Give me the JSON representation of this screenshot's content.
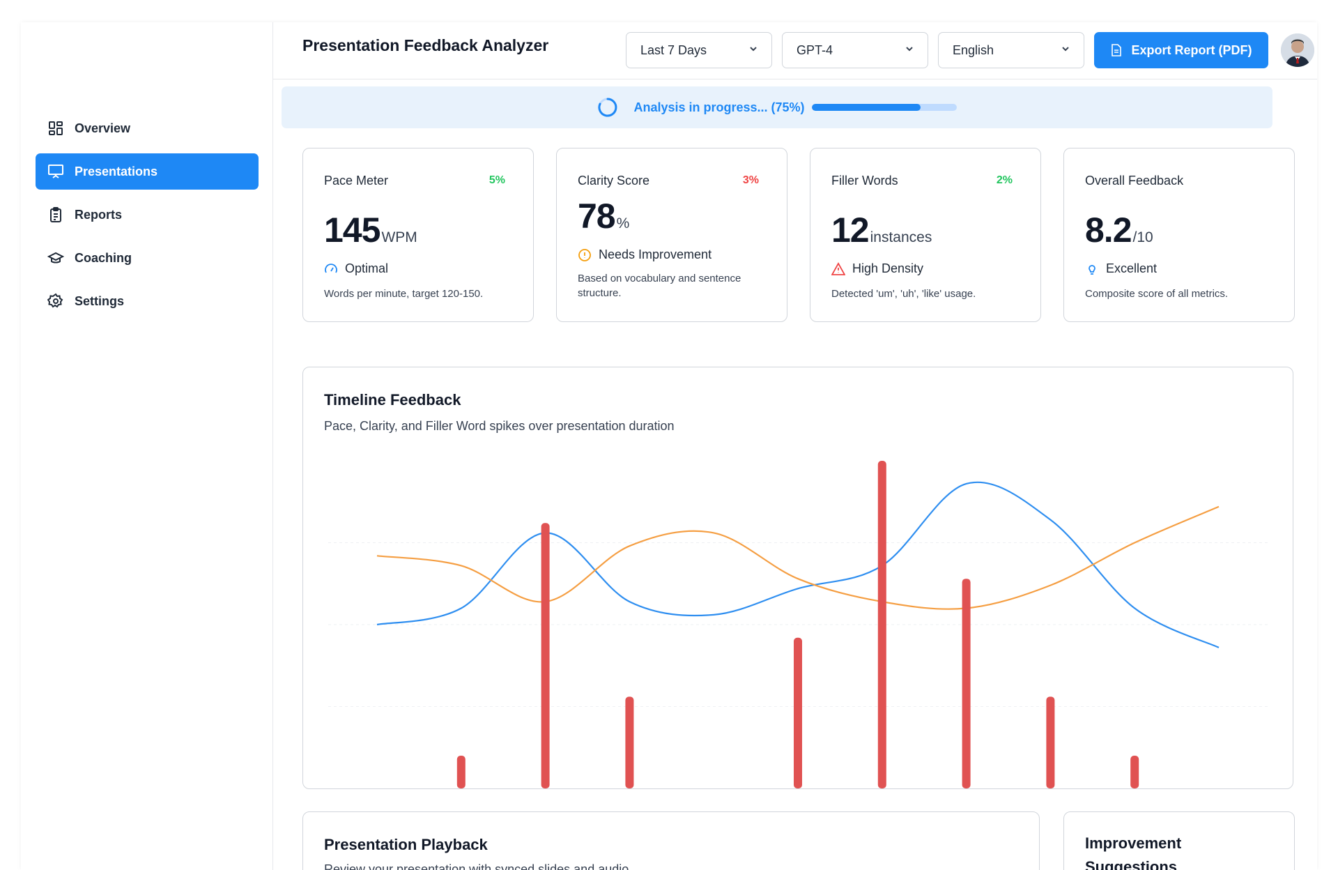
{
  "header": {
    "title": "Presentation Feedback Analyzer",
    "filters": [
      {
        "label": "Last 7 Days"
      },
      {
        "label": "GPT-4"
      },
      {
        "label": "English"
      }
    ],
    "export_label": "Export Report (PDF)"
  },
  "sidebar": {
    "items": [
      {
        "label": "Overview",
        "icon": "dashboard-grid-icon",
        "active": false
      },
      {
        "label": "Presentations",
        "icon": "presentation-board-icon",
        "active": true
      },
      {
        "label": "Reports",
        "icon": "clipboard-list-icon",
        "active": false
      },
      {
        "label": "Coaching",
        "icon": "graduation-cap-icon",
        "active": false
      },
      {
        "label": "Settings",
        "icon": "gear-icon",
        "active": false
      }
    ]
  },
  "progress": {
    "text": "Analysis in progress... (75%)",
    "value": 0.75
  },
  "cards": [
    {
      "title": "Pace Meter",
      "delta": "5%",
      "delta_color": "#22c55e",
      "value": "145",
      "unit": "WPM",
      "status": "Optimal",
      "status_icon": "gauge-icon",
      "status_color": "#1e88f5",
      "desc": "Words per minute, target 120-150."
    },
    {
      "title": "Clarity Score",
      "delta": "3%",
      "delta_color": "#ef4444",
      "value": "78",
      "unit": "%",
      "status": "Needs Improvement",
      "status_icon": "alert-circle-icon",
      "status_color": "#f59e0b",
      "desc": "Based on vocabulary and sentence structure."
    },
    {
      "title": "Filler Words",
      "delta": "2%",
      "delta_color": "#22c55e",
      "value": "12",
      "unit": "instances",
      "status": "High Density",
      "status_icon": "warning-triangle-icon",
      "status_color": "#ef4444",
      "desc": "Detected 'um', 'uh', 'like' usage."
    },
    {
      "title": "Overall Feedback",
      "delta": "",
      "value": "8.2",
      "unit": "/10",
      "status": "Excellent",
      "status_icon": "lightbulb-icon",
      "status_color": "#1e88f5",
      "desc": "Composite score of all metrics."
    }
  ],
  "timeline": {
    "title": "Timeline Feedback",
    "subtitle": "Pace, Clarity, and Filler Word spikes over presentation duration"
  },
  "chart_data": {
    "type": "line",
    "x": [
      0,
      1,
      2,
      3,
      4,
      5,
      6,
      7,
      8,
      9,
      10
    ],
    "ylim": [
      0,
      100
    ],
    "grid": true,
    "series": [
      {
        "kind": "line",
        "color": "#2e8ef0",
        "values": [
          50,
          55,
          78,
          57,
          53,
          61,
          68,
          93,
          82,
          55,
          43
        ]
      },
      {
        "kind": "line",
        "color": "#f59e42",
        "values": [
          71,
          68,
          57,
          74,
          78,
          64,
          57,
          55,
          62,
          75,
          86
        ]
      },
      {
        "kind": "bar",
        "color": "#e05252",
        "values": [
          0,
          10,
          81,
          28,
          0,
          46,
          100,
          64,
          28,
          10,
          0
        ]
      }
    ]
  },
  "playback": {
    "title": "Presentation Playback",
    "subtitle": "Review your presentation with synced slides and audio."
  },
  "suggestions": {
    "title": "Improvement Suggestions"
  }
}
